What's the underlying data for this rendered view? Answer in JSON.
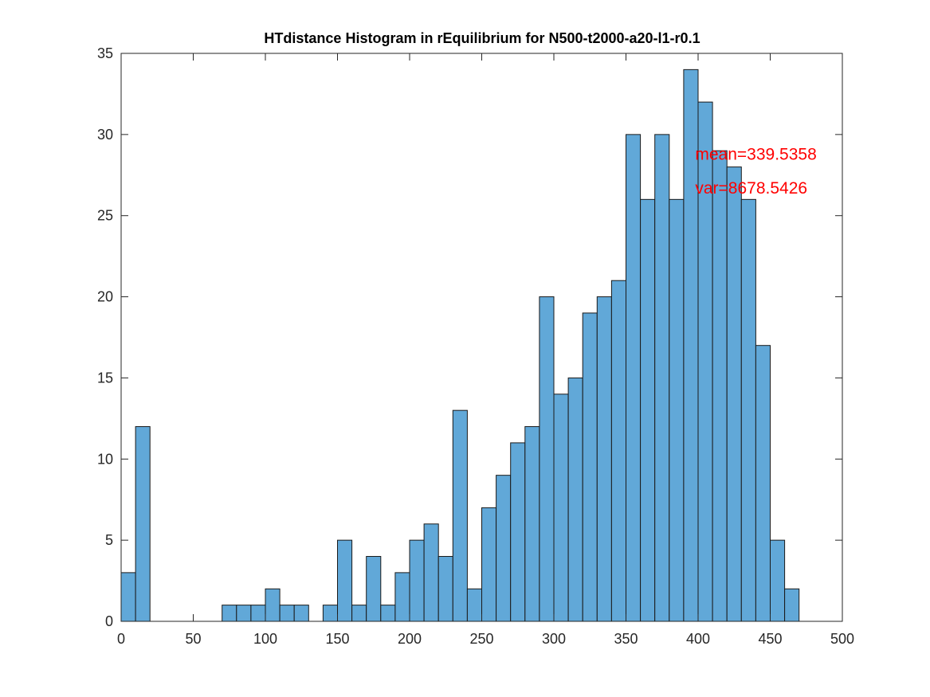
{
  "chart_data": {
    "type": "bar",
    "title": "HTdistance Histogram in rEquilibrium for N500-t2000-a20-l1-r0.1",
    "xlabel": "",
    "ylabel": "",
    "xlim": [
      0,
      500
    ],
    "ylim": [
      0,
      35
    ],
    "x_ticks": [
      0,
      50,
      100,
      150,
      200,
      250,
      300,
      350,
      400,
      450,
      500
    ],
    "y_ticks": [
      0,
      5,
      10,
      15,
      20,
      25,
      30,
      35
    ],
    "bin_width": 10,
    "bin_edges_start": [
      0,
      10,
      20,
      30,
      40,
      50,
      60,
      70,
      80,
      90,
      100,
      110,
      120,
      130,
      140,
      150,
      160,
      170,
      180,
      190,
      200,
      210,
      220,
      230,
      240,
      250,
      260,
      270,
      280,
      290,
      300,
      310,
      320,
      330,
      340,
      350,
      360,
      370,
      380,
      390,
      400,
      410,
      420,
      430,
      440,
      450,
      460
    ],
    "counts": [
      3,
      12,
      0,
      0,
      0,
      0,
      0,
      1,
      1,
      1,
      2,
      1,
      1,
      0,
      1,
      5,
      1,
      4,
      1,
      3,
      5,
      6,
      4,
      13,
      2,
      7,
      9,
      11,
      12,
      20,
      14,
      15,
      19,
      20,
      21,
      30,
      26,
      30,
      26,
      34,
      32,
      29,
      28,
      26,
      17,
      5,
      2
    ],
    "bar_color": "#61a8d8",
    "edge_color": "#1a1a1a",
    "grid": false,
    "annotations": [
      {
        "text": "mean=339.5358",
        "x": 398,
        "y": 28.8,
        "color": "#ff0000"
      },
      {
        "text": "var=8678.5426",
        "x": 398,
        "y": 26.7,
        "color": "#ff0000"
      }
    ]
  }
}
